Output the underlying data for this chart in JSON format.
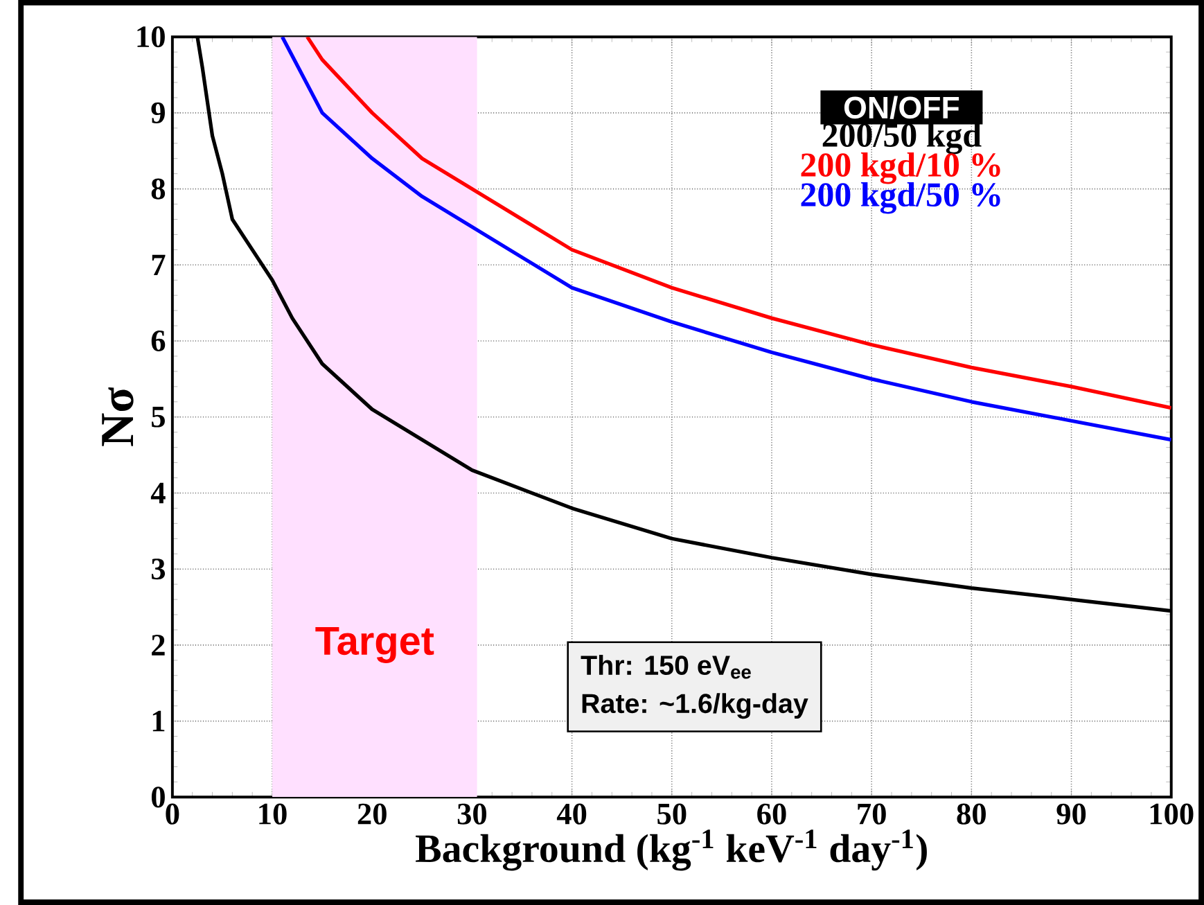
{
  "chart_data": {
    "type": "line",
    "xlabel": "Background (kg$^{-1}$ keV$^{-1}$ day$^{-1}$)",
    "ylabel": "Nσ",
    "legend_title": "ON/OFF",
    "legend": "top right",
    "grid": true,
    "xlim": [
      0,
      100
    ],
    "ylim": [
      0,
      10
    ],
    "xticks": [
      0,
      10,
      20,
      30,
      40,
      50,
      60,
      70,
      80,
      90,
      100
    ],
    "yticks": [
      0,
      1,
      2,
      3,
      4,
      5,
      6,
      7,
      8,
      9,
      10
    ],
    "series": [
      {
        "name": "200/50 kgd",
        "color": "#000000",
        "x": [
          2.5,
          3,
          4,
          5,
          6,
          8,
          10,
          12,
          15,
          20,
          25,
          30,
          40,
          50,
          60,
          70,
          80,
          90,
          100
        ],
        "values": [
          10,
          9.6,
          8.7,
          8.2,
          7.6,
          7.2,
          6.8,
          6.3,
          5.7,
          5.1,
          4.7,
          4.3,
          3.8,
          3.4,
          3.15,
          2.93,
          2.75,
          2.6,
          2.45
        ]
      },
      {
        "name": "200 kgd/10 %",
        "color": "#ff0000",
        "x": [
          13.5,
          15,
          20,
          25,
          30,
          40,
          50,
          60,
          70,
          80,
          90,
          100
        ],
        "values": [
          10,
          9.7,
          9.0,
          8.4,
          8.0,
          7.2,
          6.7,
          6.3,
          5.95,
          5.65,
          5.4,
          5.12
        ]
      },
      {
        "name": "200 kgd/50 %",
        "color": "#0000ff",
        "x": [
          11,
          15,
          20,
          25,
          30,
          40,
          50,
          60,
          70,
          80,
          90,
          100
        ],
        "values": [
          10,
          9.0,
          8.4,
          7.9,
          7.5,
          6.7,
          6.25,
          5.85,
          5.5,
          5.2,
          4.95,
          4.7
        ]
      }
    ],
    "bands": [
      {
        "axis": "x",
        "from": 10,
        "to": 30.5,
        "label": "Target",
        "color": "#ffe0ff"
      }
    ],
    "annotations": [
      "Thr: 150 eV$_{ee}$",
      "Rate: ~1.6/kg-day"
    ]
  }
}
